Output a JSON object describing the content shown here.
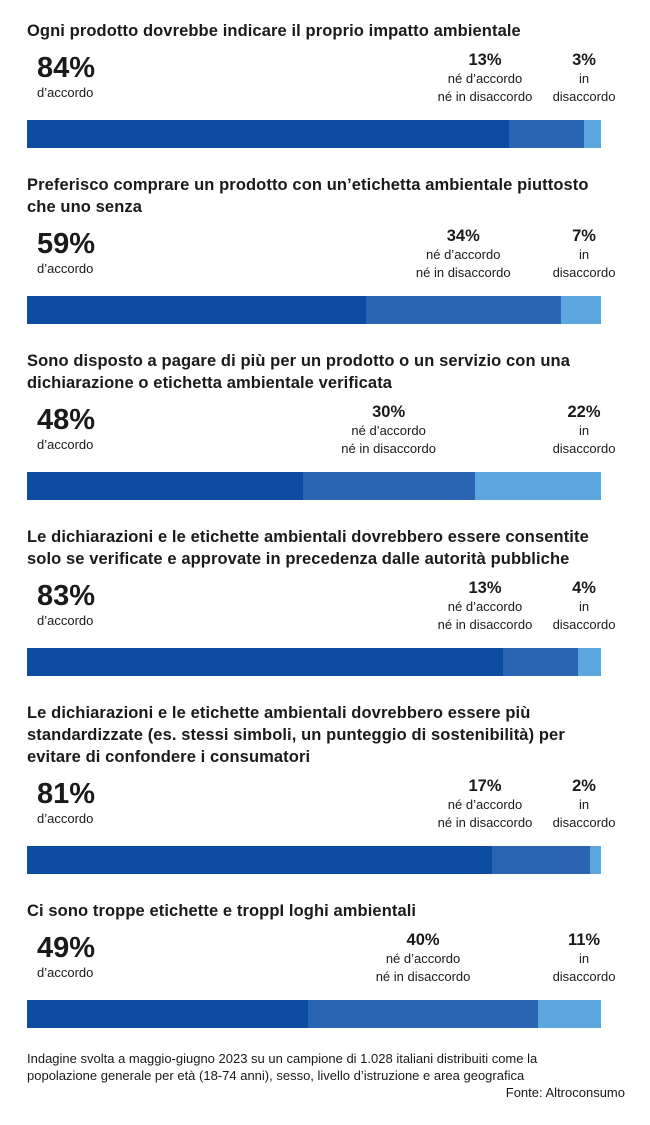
{
  "chart_data": [
    {
      "type": "stacked-bar",
      "title": "Ogni prodotto dovrebbe indicare il proprio impatto ambientale",
      "xlim": [
        0,
        100
      ],
      "series": [
        {
          "name": "d’accordo",
          "color": "#0c4da2",
          "values": [
            84
          ],
          "value_labels": [
            "84%"
          ]
        },
        {
          "name": "né d’accordo\nné in disaccordo",
          "color": "#2b65b4",
          "values": [
            13
          ],
          "value_labels": [
            "13%"
          ]
        },
        {
          "name": "in\ndisaccordo",
          "color": "#5ea6df",
          "values": [
            3
          ],
          "value_labels": [
            "3%"
          ]
        }
      ]
    },
    {
      "type": "stacked-bar",
      "title": "Preferisco comprare un prodotto con un’etichetta ambientale piuttosto che uno senza",
      "xlim": [
        0,
        100
      ],
      "series": [
        {
          "name": "d’accordo",
          "color": "#0c4da2",
          "values": [
            59
          ],
          "value_labels": [
            "59%"
          ]
        },
        {
          "name": "né d’accordo\nné in disaccordo",
          "color": "#2b65b4",
          "values": [
            34
          ],
          "value_labels": [
            "34%"
          ]
        },
        {
          "name": "in\ndisaccordo",
          "color": "#5ea6df",
          "values": [
            7
          ],
          "value_labels": [
            "7%"
          ]
        }
      ]
    },
    {
      "type": "stacked-bar",
      "title": "Sono disposto a pagare di più per un prodotto o un servizio con una dichiarazione o etichetta ambientale verificata",
      "xlim": [
        0,
        100
      ],
      "series": [
        {
          "name": "d’accordo",
          "color": "#0c4da2",
          "values": [
            48
          ],
          "value_labels": [
            "48%"
          ]
        },
        {
          "name": "né d’accordo\nné in disaccordo",
          "color": "#2b65b4",
          "values": [
            30
          ],
          "value_labels": [
            "30%"
          ]
        },
        {
          "name": "in\ndisaccordo",
          "color": "#5ea6df",
          "values": [
            22
          ],
          "value_labels": [
            "22%"
          ]
        }
      ]
    },
    {
      "type": "stacked-bar",
      "title": "Le dichiarazioni e le etichette ambientali dovrebbero essere consentite solo se verificate e approvate in precedenza dalle autorità pubbliche",
      "xlim": [
        0,
        100
      ],
      "series": [
        {
          "name": "d’accordo",
          "color": "#0c4da2",
          "values": [
            83
          ],
          "value_labels": [
            "83%"
          ]
        },
        {
          "name": "né d’accordo\nné in disaccordo",
          "color": "#2b65b4",
          "values": [
            13
          ],
          "value_labels": [
            "13%"
          ]
        },
        {
          "name": "in\ndisaccordo",
          "color": "#5ea6df",
          "values": [
            4
          ],
          "value_labels": [
            "4%"
          ]
        }
      ]
    },
    {
      "type": "stacked-bar",
      "title": "Le dichiarazioni e le etichette ambientali dovrebbero essere più standardizzate (es. stessi simboli, un punteggio di sostenibilità) per evitare di confondere i consumatori",
      "xlim": [
        0,
        100
      ],
      "series": [
        {
          "name": "d’accordo",
          "color": "#0c4da2",
          "values": [
            81
          ],
          "value_labels": [
            "81%"
          ]
        },
        {
          "name": "né d’accordo\nné in disaccordo",
          "color": "#2b65b4",
          "values": [
            17
          ],
          "value_labels": [
            "17%"
          ]
        },
        {
          "name": "in\ndisaccordo",
          "color": "#5ea6df",
          "values": [
            2
          ],
          "value_labels": [
            "2%"
          ]
        }
      ]
    },
    {
      "type": "stacked-bar",
      "title": "Ci sono troppe etichette e troppI loghi ambientali",
      "xlim": [
        0,
        100
      ],
      "series": [
        {
          "name": "d’accordo",
          "color": "#0c4da2",
          "values": [
            49
          ],
          "value_labels": [
            "49%"
          ]
        },
        {
          "name": "né d’accordo\nné in disaccordo",
          "color": "#2b65b4",
          "values": [
            40
          ],
          "value_labels": [
            "40%"
          ]
        },
        {
          "name": "in\ndisaccordo",
          "color": "#5ea6df",
          "values": [
            11
          ],
          "value_labels": [
            "11%"
          ]
        }
      ]
    }
  ],
  "note": "Indagine svolta a maggio-giugno 2023 su un campione di 1.028 italiani distribuiti come la popolazione generale per età (18-74 anni), sesso, livello d’istruzione e area geografica",
  "source": "Fonte: Altroconsumo"
}
